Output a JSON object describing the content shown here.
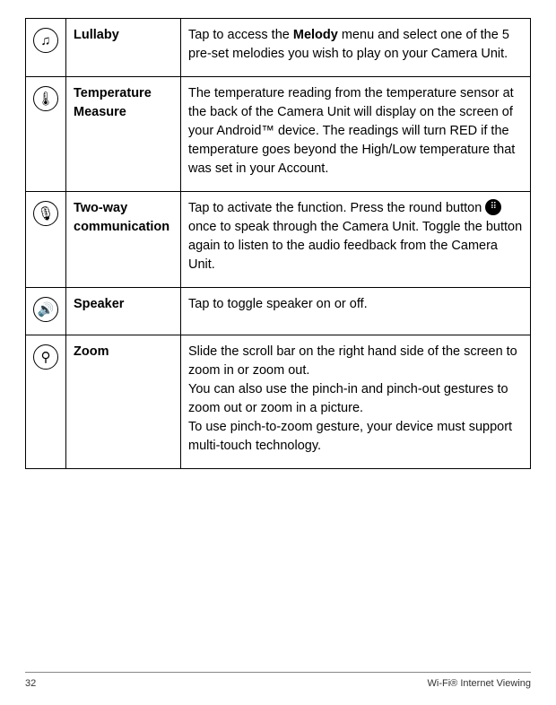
{
  "table": {
    "border_color": "#000000",
    "rows": [
      {
        "icon": {
          "name": "music-note-icon",
          "glyph": "♫"
        },
        "title": "Lullaby",
        "desc_pre": "Tap to access the ",
        "desc_bold": "Melody",
        "desc_post": " menu and select one of the 5 pre-set melodies you wish to play on your Camera Unit."
      },
      {
        "icon": {
          "name": "thermometer-icon",
          "glyph": "🌡"
        },
        "title": "Temperature Measure",
        "desc": "The temperature reading from the temperature sensor at the back of the Camera Unit will display on the screen of your Android™ device. The readings will turn RED if the temperature goes beyond the High/Low temperature that was set in your Account."
      },
      {
        "icon": {
          "name": "microphone-icon",
          "glyph": "🎙"
        },
        "title": "Two-way communication",
        "desc_pre": "Tap to activate the function. Press the round button ",
        "inline_icon": {
          "name": "grid-button-icon",
          "glyph": "⠿"
        },
        "desc_post": " once to speak through the Camera Unit. Toggle the button again to listen to the audio feedback from the Camera Unit."
      },
      {
        "icon": {
          "name": "speaker-icon",
          "glyph": "🔊"
        },
        "title": "Speaker",
        "desc": "Tap to toggle speaker on or off."
      },
      {
        "icon": {
          "name": "magnifier-icon",
          "glyph": "⚲"
        },
        "title": "Zoom",
        "desc_lines": [
          "Slide the scroll bar on the right hand side of the screen to zoom in or zoom out.",
          "You can also use the pinch-in and pinch-out gestures to zoom out or zoom in a picture.",
          "To use pinch-to-zoom gesture, your device must support multi-touch technology."
        ]
      }
    ]
  },
  "footer": {
    "page_number": "32",
    "section_title": "Wi-Fi® Internet Viewing"
  },
  "style": {
    "page_bg": "#ffffff",
    "text_color": "#000000",
    "body_fontsize": 14.5,
    "footer_fontsize": 11
  }
}
